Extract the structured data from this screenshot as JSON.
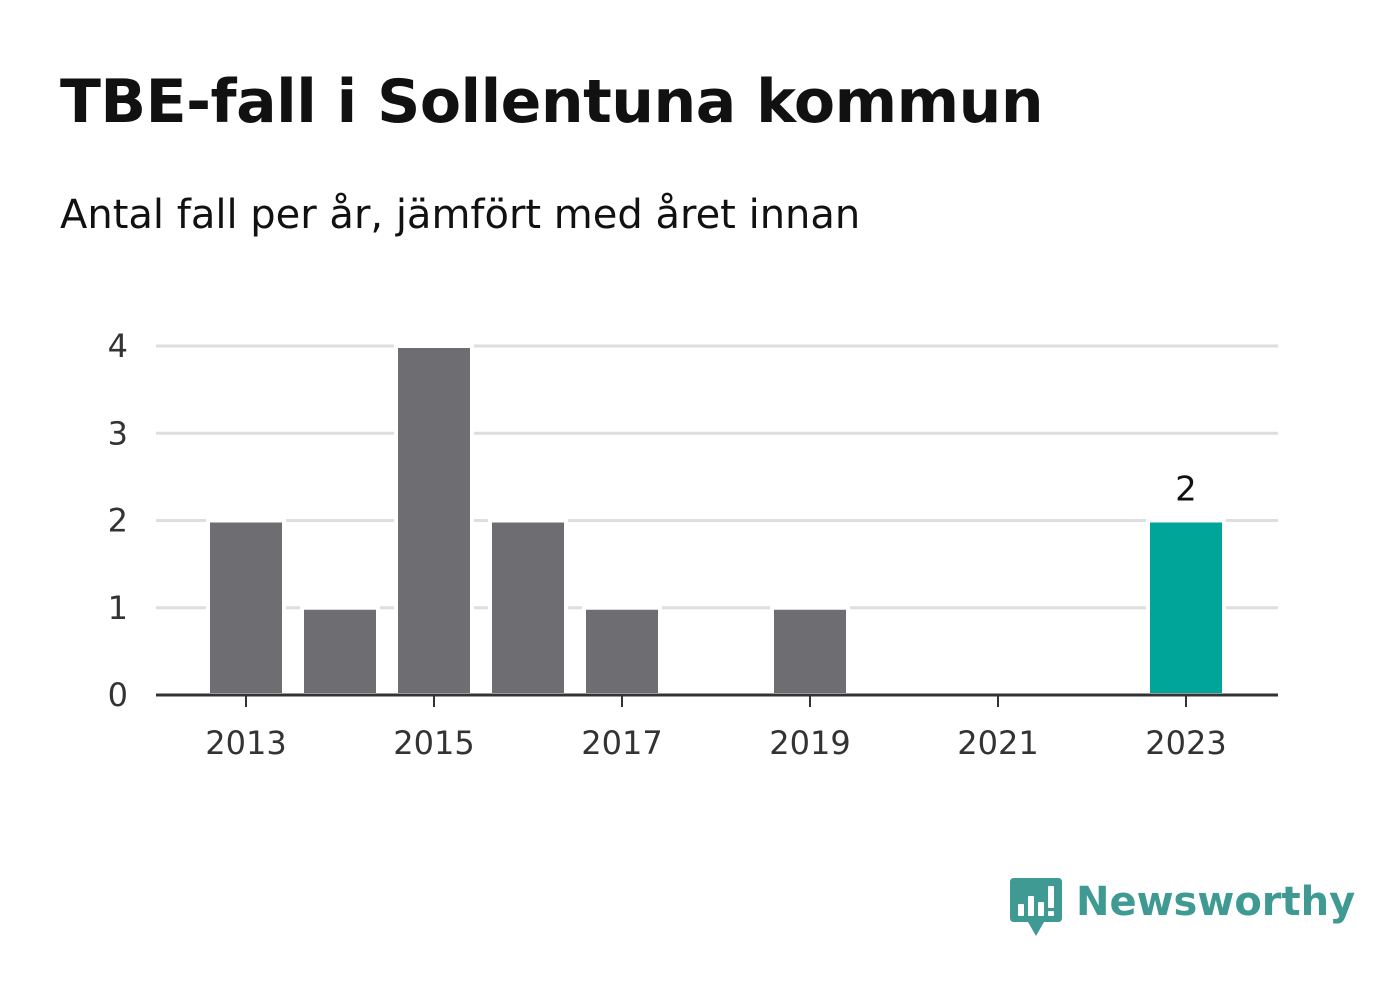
{
  "header": {
    "title": "TBE-fall i Sollentuna kommun",
    "subtitle": "Antal fall per år, jämfört med året innan"
  },
  "chart_data": {
    "type": "bar",
    "categories": [
      "2013",
      "2014",
      "2015",
      "2016",
      "2017",
      "2018",
      "2019",
      "2020",
      "2021",
      "2022",
      "2023"
    ],
    "values": [
      2,
      1,
      4,
      2,
      1,
      0,
      1,
      0,
      0,
      0,
      2
    ],
    "x_tick_labels": [
      "2013",
      "2015",
      "2017",
      "2019",
      "2021",
      "2023"
    ],
    "y_tick_labels": [
      "0",
      "1",
      "2",
      "3",
      "4"
    ],
    "ylim": [
      0,
      4
    ],
    "grid": true,
    "highlight_category": "2023",
    "highlight_label": "2",
    "colors": {
      "bar": "#6e6d72",
      "highlight": "#00a59a",
      "grid": "#dedede",
      "axis": "#333333",
      "tick_text": "#333333"
    }
  },
  "branding": {
    "logo_text": "Newsworthy",
    "logo_icon": "newsworthy-bar-chart-speech-bubble-icon",
    "color": "#3f9a94"
  }
}
